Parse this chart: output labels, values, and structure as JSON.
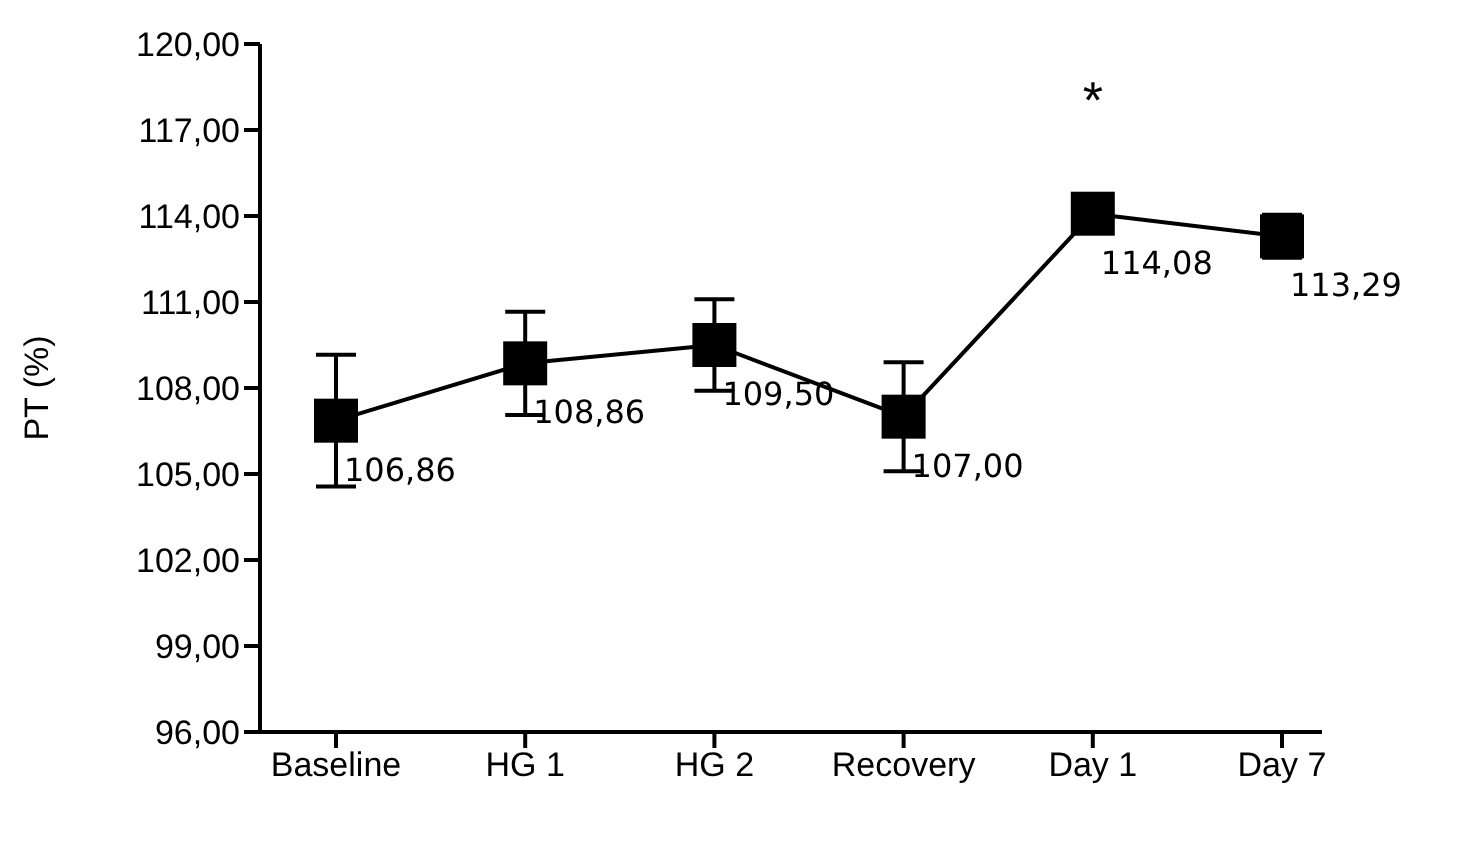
{
  "chart_data": {
    "type": "line",
    "ylabel": "PT (%)",
    "categories": [
      "Baseline",
      "HG 1",
      "HG 2",
      "Recovery",
      "Day 1",
      "Day 7"
    ],
    "series": [
      {
        "color": "#000000",
        "values": [
          106.86,
          108.86,
          109.5,
          107.0,
          114.08,
          113.29
        ],
        "errors": [
          2.3,
          1.8,
          1.6,
          1.9,
          null,
          0.75
        ],
        "value_labels": [
          "106,86",
          "108,86",
          "109,50",
          "107,00",
          "114,08",
          "113,29"
        ]
      }
    ],
    "ylim": [
      96,
      120
    ],
    "yticks": [
      {
        "value": 96,
        "label": "96,00"
      },
      {
        "value": 99,
        "label": "99,00"
      },
      {
        "value": 102,
        "label": "102,00"
      },
      {
        "value": 105,
        "label": "105,00"
      },
      {
        "value": 108,
        "label": "108,00"
      },
      {
        "value": 111,
        "label": "111,00"
      },
      {
        "value": 114,
        "label": "114,00"
      },
      {
        "value": 117,
        "label": "117,00"
      },
      {
        "value": 120,
        "label": "120,00"
      }
    ],
    "annotations": [
      "*"
    ],
    "marker": "square",
    "line_style": "solid"
  }
}
